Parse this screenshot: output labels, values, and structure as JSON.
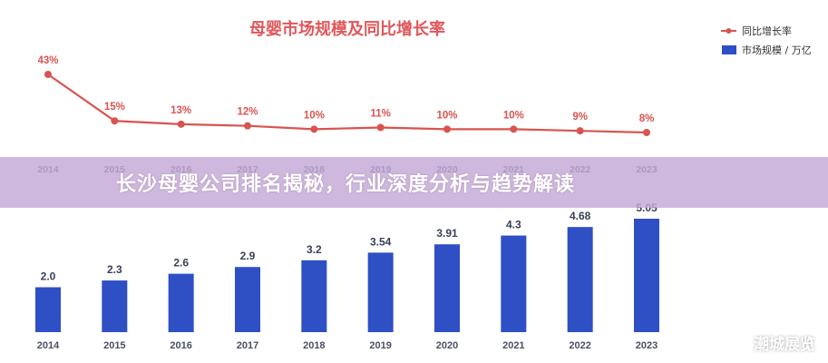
{
  "colors": {
    "title": "#e0575a",
    "line": "#d9534f",
    "bar": "#2f4fc4",
    "axis_text": "#4a4f63",
    "label_text": "#3a3f55",
    "banner": "#c4a8d6",
    "banner_text": "#ffffff"
  },
  "banner": {
    "title": "长沙母婴公司排名揭秘，行业深度分析与趋势解读"
  },
  "watermark": {
    "text": "潮城展览",
    "icon": "wechat-icon"
  },
  "chart_data": [
    {
      "type": "line",
      "title": "母婴市场规模及同比增长率",
      "legend_position": "top-right",
      "categories": [
        "2014",
        "2015",
        "2016",
        "2017",
        "2018",
        "2019",
        "2020",
        "2021",
        "2022",
        "2023"
      ],
      "series": [
        {
          "name": "同比增长率",
          "values": [
            43,
            15,
            13,
            12,
            10,
            11,
            10,
            10,
            9,
            8
          ]
        }
      ],
      "value_labels": [
        "43%",
        "15%",
        "13%",
        "12%",
        "10%",
        "11%",
        "10%",
        "10%",
        "9%",
        "8%"
      ],
      "ylim": [
        0,
        50
      ]
    },
    {
      "type": "bar",
      "categories": [
        "2014",
        "2015",
        "2016",
        "2017",
        "2018",
        "2019",
        "2020",
        "2021",
        "2022",
        "2023"
      ],
      "series": [
        {
          "name": "市场规模 / 万亿",
          "values": [
            2.0,
            2.3,
            2.6,
            2.9,
            3.2,
            3.54,
            3.91,
            4.3,
            4.68,
            5.05
          ]
        }
      ],
      "value_labels": [
        "2.0",
        "2.3",
        "2.6",
        "2.9",
        "3.2",
        "3.54",
        "3.91",
        "4.3",
        "4.68",
        "5.05"
      ],
      "ylim": [
        0,
        5.3
      ]
    }
  ]
}
